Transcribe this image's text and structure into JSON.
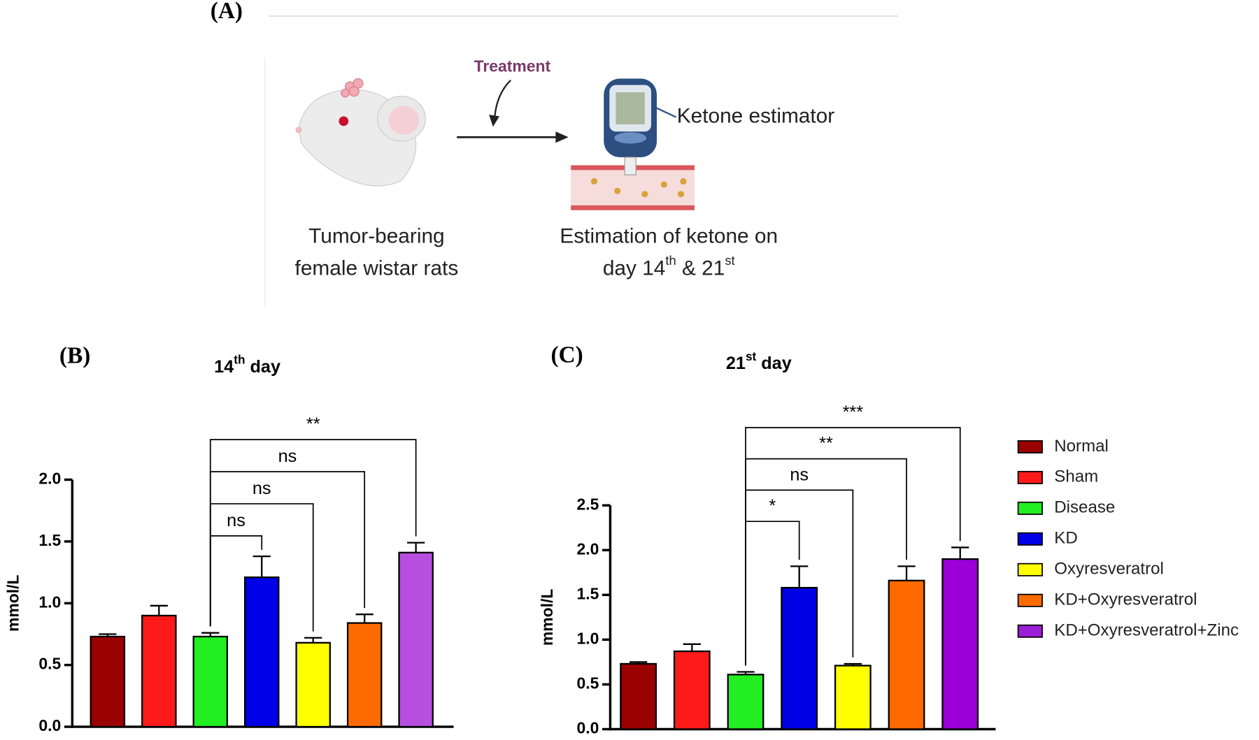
{
  "diagram": {
    "label": "(A)",
    "treatment": "Treatment",
    "device": "Ketone estimator",
    "subject": [
      "Tumor-bearing",
      "female wistar rats"
    ],
    "step": [
      "Estimation of ketone on",
      [
        "day 14",
        "th",
        " & 21",
        "st"
      ]
    ]
  },
  "legend": [
    {
      "name": "Normal",
      "color": "#9b0000"
    },
    {
      "name": "Sham",
      "color": "#ff1a1a"
    },
    {
      "name": "Disease",
      "color": "#22ee22"
    },
    {
      "name": "KD",
      "color": "#0000e6"
    },
    {
      "name": "Oxyresveratrol",
      "color": "#ffff00"
    },
    {
      "name": "KD+Oxyresveratrol",
      "color": "#ff6a00"
    },
    {
      "name": "KD+Oxyresveratrol+Zinc",
      "color": "#9c1ed6"
    }
  ],
  "chart_data": [
    {
      "type": "bar",
      "panel": "(B)",
      "title": [
        "14",
        "th",
        " day"
      ],
      "ylabel": "mmol/L",
      "values": [
        0.73,
        0.9,
        0.73,
        1.21,
        0.68,
        0.84,
        1.41
      ],
      "errors": [
        0.02,
        0.08,
        0.03,
        0.17,
        0.04,
        0.07,
        0.08
      ],
      "colors": [
        "#9b0000",
        "#ff1a1a",
        "#22ee22",
        "#0000e6",
        "#ffff00",
        "#ff6a00",
        "#b84ee0"
      ],
      "ylim": [
        0,
        2
      ],
      "yticks": [
        {
          "value": 0,
          "label": "0.0"
        },
        0.5,
        {
          "value": 1,
          "label": "1.0"
        },
        1.5,
        {
          "value": 2,
          "label": "2.0"
        }
      ],
      "comparisons": [
        {
          "from": 2,
          "to": 3,
          "label": "ns"
        },
        {
          "from": 2,
          "to": 4,
          "label": "ns"
        },
        {
          "from": 2,
          "to": 5,
          "label": "ns"
        },
        {
          "from": 2,
          "to": 6,
          "label": "**"
        }
      ]
    },
    {
      "type": "bar",
      "panel": "(C)",
      "title": [
        "21",
        "st",
        " day"
      ],
      "ylabel": "mmol/L",
      "values": [
        0.73,
        0.87,
        0.61,
        1.58,
        0.71,
        1.66,
        1.9
      ],
      "errors": [
        0.02,
        0.08,
        0.03,
        0.24,
        0.02,
        0.16,
        0.13
      ],
      "colors": [
        "#9b0000",
        "#ff1a1a",
        "#22ee22",
        "#0000e6",
        "#ffff00",
        "#ff6a00",
        "#9b00d8"
      ],
      "ylim": [
        0,
        2.5
      ],
      "yticks": [
        {
          "value": 0,
          "label": "0.0"
        },
        0.5,
        {
          "value": 1,
          "label": "1.0"
        },
        1.5,
        {
          "value": 2,
          "label": "2.0"
        },
        2.5
      ],
      "comparisons": [
        {
          "from": 2,
          "to": 3,
          "label": "*"
        },
        {
          "from": 2,
          "to": 4,
          "label": "ns"
        },
        {
          "from": 2,
          "to": 5,
          "label": "**"
        },
        {
          "from": 2,
          "to": 6,
          "label": "***"
        }
      ]
    }
  ]
}
